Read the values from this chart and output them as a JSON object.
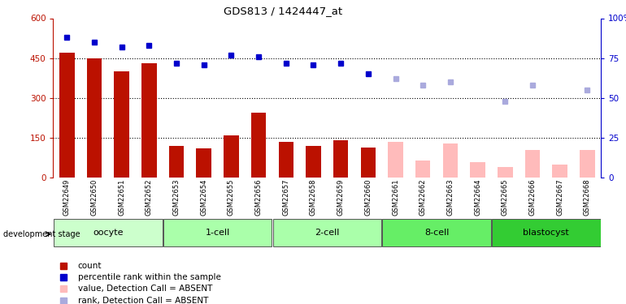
{
  "title": "GDS813 / 1424447_at",
  "samples": [
    "GSM22649",
    "GSM22650",
    "GSM22651",
    "GSM22652",
    "GSM22653",
    "GSM22654",
    "GSM22655",
    "GSM22656",
    "GSM22657",
    "GSM22658",
    "GSM22659",
    "GSM22660",
    "GSM22661",
    "GSM22662",
    "GSM22663",
    "GSM22664",
    "GSM22665",
    "GSM22666",
    "GSM22667",
    "GSM22668"
  ],
  "count_values": [
    470,
    450,
    400,
    430,
    120,
    110,
    160,
    245,
    135,
    120,
    140,
    115,
    null,
    null,
    null,
    null,
    null,
    null,
    null,
    null
  ],
  "count_absent": [
    null,
    null,
    null,
    null,
    null,
    null,
    null,
    null,
    null,
    null,
    null,
    null,
    135,
    65,
    130,
    60,
    40,
    105,
    50,
    105
  ],
  "rank_pct_present": [
    88,
    85,
    82,
    83,
    72,
    71,
    77,
    76,
    72,
    71,
    72,
    65,
    null,
    null,
    null,
    null,
    null,
    null,
    null,
    null
  ],
  "rank_pct_absent": [
    null,
    null,
    null,
    null,
    null,
    null,
    null,
    null,
    null,
    null,
    null,
    null,
    62,
    58,
    60,
    null,
    48,
    58,
    null,
    55
  ],
  "ylim_left": [
    0,
    600
  ],
  "ylim_right": [
    0,
    100
  ],
  "yticks_left": [
    0,
    150,
    300,
    450,
    600
  ],
  "yticks_right": [
    0,
    25,
    50,
    75,
    100
  ],
  "bar_color_present": "#bb1100",
  "bar_color_absent": "#ffbbbb",
  "dot_color_present": "#0000cc",
  "dot_color_absent": "#aaaadd",
  "xtick_bg": "#cccccc",
  "stage_info": [
    {
      "name": "oocyte",
      "start": 0,
      "end": 3,
      "color": "#ccffcc"
    },
    {
      "name": "1-cell",
      "start": 4,
      "end": 7,
      "color": "#aaffaa"
    },
    {
      "name": "2-cell",
      "start": 8,
      "end": 11,
      "color": "#aaffaa"
    },
    {
      "name": "8-cell",
      "start": 12,
      "end": 15,
      "color": "#66ee66"
    },
    {
      "name": "blastocyst",
      "start": 16,
      "end": 19,
      "color": "#33cc33"
    }
  ],
  "legend_items": [
    {
      "color": "#bb1100",
      "label": "count"
    },
    {
      "color": "#0000cc",
      "label": "percentile rank within the sample"
    },
    {
      "color": "#ffbbbb",
      "label": "value, Detection Call = ABSENT"
    },
    {
      "color": "#aaaadd",
      "label": "rank, Detection Call = ABSENT"
    }
  ]
}
